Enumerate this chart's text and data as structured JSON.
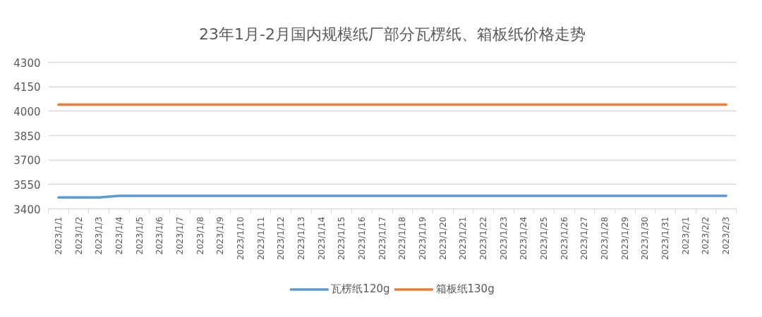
{
  "chart_data": {
    "type": "line",
    "title": "23年1月-2月国内规模纸厂部分瓦楞纸、箱板纸价格走势",
    "categories": [
      "2023/1/1",
      "2023/1/2",
      "2023/1/3",
      "2023/1/4",
      "2023/1/5",
      "2023/1/6",
      "2023/1/7",
      "2023/1/8",
      "2023/1/9",
      "2023/1/10",
      "2023/1/11",
      "2023/1/12",
      "2023/1/13",
      "2023/1/14",
      "2023/1/15",
      "2023/1/16",
      "2023/1/17",
      "2023/1/18",
      "2023/1/19",
      "2023/1/20",
      "2023/1/21",
      "2023/1/22",
      "2023/1/23",
      "2023/1/24",
      "2023/1/25",
      "2023/1/26",
      "2023/1/27",
      "2023/1/28",
      "2023/1/29",
      "2023/1/30",
      "2023/1/31",
      "2023/2/1",
      "2023/2/2",
      "2023/2/3"
    ],
    "series": [
      {
        "name": "瓦楞纸120g",
        "color": "#5b9bd5",
        "values": [
          3470,
          3470,
          3470,
          3480,
          3480,
          3480,
          3480,
          3480,
          3480,
          3480,
          3480,
          3480,
          3480,
          3480,
          3480,
          3480,
          3480,
          3480,
          3480,
          3480,
          3480,
          3480,
          3480,
          3480,
          3480,
          3480,
          3480,
          3480,
          3480,
          3480,
          3480,
          3480,
          3480,
          3480
        ]
      },
      {
        "name": "箱板纸130g",
        "color": "#ed7d31",
        "values": [
          4040,
          4040,
          4040,
          4040,
          4040,
          4040,
          4040,
          4040,
          4040,
          4040,
          4040,
          4040,
          4040,
          4040,
          4040,
          4040,
          4040,
          4040,
          4040,
          4040,
          4040,
          4040,
          4040,
          4040,
          4040,
          4040,
          4040,
          4040,
          4040,
          4040,
          4040,
          4040,
          4040,
          4040
        ]
      }
    ],
    "ylim": [
      3400,
      4300
    ],
    "yticks": [
      3400,
      3550,
      3700,
      3850,
      4000,
      4150,
      4300
    ],
    "grid": "y",
    "legend": "bottom"
  }
}
